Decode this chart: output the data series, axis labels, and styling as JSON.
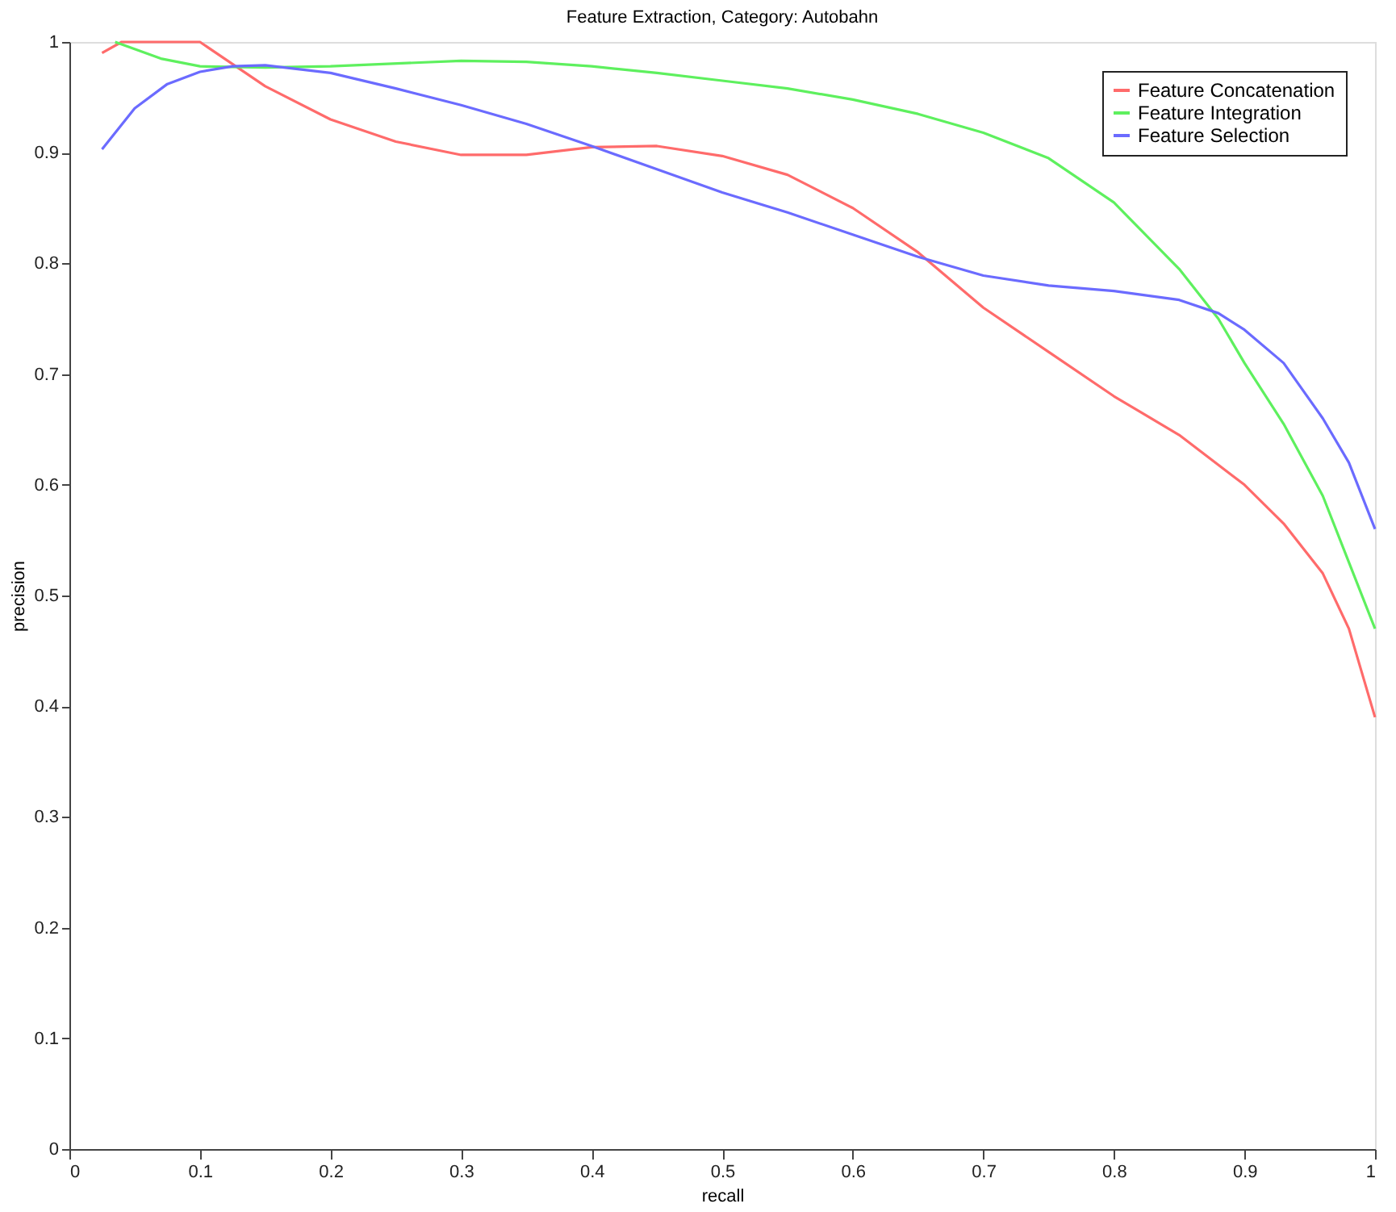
{
  "chart_data": {
    "type": "line",
    "title": "Feature Extraction, Category: Autobahn",
    "xlabel": "recall",
    "ylabel": "precision",
    "xlim": [
      0,
      1
    ],
    "ylim": [
      0,
      1
    ],
    "xticks": [
      0,
      0.1,
      0.2,
      0.3,
      0.4,
      0.5,
      0.6,
      0.7,
      0.8,
      0.9,
      1
    ],
    "yticks": [
      0,
      0.1,
      0.2,
      0.3,
      0.4,
      0.5,
      0.6,
      0.7,
      0.8,
      0.9,
      1
    ],
    "grid": false,
    "legend": "top right",
    "marker": "none",
    "line_style": "solid",
    "series": [
      {
        "name": "Feature Concatenation",
        "color": "#ff6b6b",
        "x": [
          0.025,
          0.04,
          0.1,
          0.15,
          0.2,
          0.25,
          0.3,
          0.35,
          0.4,
          0.45,
          0.5,
          0.55,
          0.6,
          0.65,
          0.7,
          0.75,
          0.8,
          0.85,
          0.9,
          0.93,
          0.96,
          0.98,
          1.0
        ],
        "values": [
          0.99,
          1.0,
          1.0,
          0.96,
          0.93,
          0.91,
          0.898,
          0.898,
          0.905,
          0.906,
          0.897,
          0.88,
          0.85,
          0.81,
          0.76,
          0.72,
          0.68,
          0.645,
          0.6,
          0.565,
          0.52,
          0.47,
          0.39
        ]
      },
      {
        "name": "Feature Integration",
        "color": "#5ef05e",
        "x": [
          0.035,
          0.07,
          0.1,
          0.15,
          0.2,
          0.3,
          0.35,
          0.4,
          0.45,
          0.5,
          0.55,
          0.6,
          0.65,
          0.7,
          0.75,
          0.8,
          0.85,
          0.88,
          0.9,
          0.93,
          0.96,
          0.98,
          1.0
        ],
        "values": [
          1.0,
          0.985,
          0.978,
          0.977,
          0.978,
          0.983,
          0.982,
          0.978,
          0.972,
          0.965,
          0.958,
          0.948,
          0.935,
          0.918,
          0.895,
          0.855,
          0.795,
          0.75,
          0.71,
          0.655,
          0.59,
          0.53,
          0.47
        ]
      },
      {
        "name": "Feature Selection",
        "color": "#6b6bff",
        "x": [
          0.025,
          0.05,
          0.075,
          0.1,
          0.125,
          0.15,
          0.2,
          0.25,
          0.3,
          0.35,
          0.4,
          0.45,
          0.5,
          0.55,
          0.6,
          0.65,
          0.7,
          0.75,
          0.8,
          0.85,
          0.88,
          0.9,
          0.93,
          0.96,
          0.98,
          1.0
        ],
        "values": [
          0.903,
          0.94,
          0.962,
          0.973,
          0.978,
          0.979,
          0.972,
          0.958,
          0.943,
          0.926,
          0.906,
          0.885,
          0.864,
          0.846,
          0.826,
          0.806,
          0.789,
          0.78,
          0.775,
          0.767,
          0.755,
          0.74,
          0.71,
          0.66,
          0.62,
          0.56
        ]
      }
    ]
  }
}
